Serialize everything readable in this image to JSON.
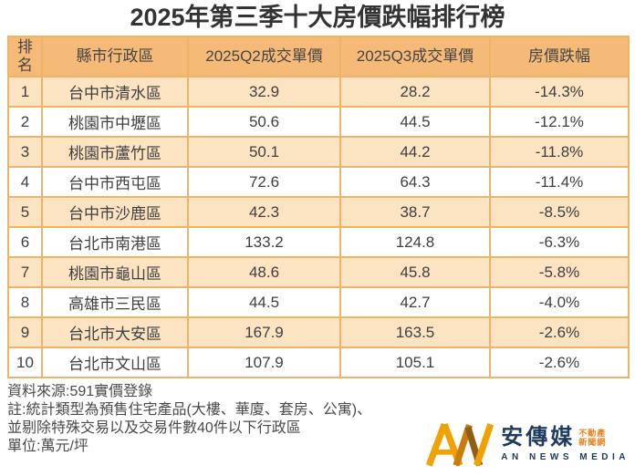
{
  "title": "2025年第三季十大房價跌幅排行榜",
  "chart_data": {
    "type": "table",
    "title": "2025年第三季十大房價跌幅排行榜",
    "columns": [
      "排名",
      "縣市行政區",
      "2025Q2成交單價",
      "2025Q3成交單價",
      "房價跌幅"
    ],
    "rows": [
      [
        "1",
        "台中市清水區",
        "32.9",
        "28.2",
        "-14.3%"
      ],
      [
        "2",
        "桃園市中壢區",
        "50.6",
        "44.5",
        "-12.1%"
      ],
      [
        "3",
        "桃園市蘆竹區",
        "50.1",
        "44.2",
        "-11.8%"
      ],
      [
        "4",
        "台中市西屯區",
        "72.6",
        "64.3",
        "-11.4%"
      ],
      [
        "5",
        "台中市沙鹿區",
        "42.3",
        "38.7",
        "-8.5%"
      ],
      [
        "6",
        "台北市南港區",
        "133.2",
        "124.8",
        "-6.3%"
      ],
      [
        "7",
        "桃園市龜山區",
        "48.6",
        "45.8",
        "-5.8%"
      ],
      [
        "8",
        "高雄市三民區",
        "44.5",
        "42.7",
        "-4.0%"
      ],
      [
        "9",
        "台北市大安區",
        "167.9",
        "163.5",
        "-2.6%"
      ],
      [
        "10",
        "台北市文山區",
        "107.9",
        "105.1",
        "-2.6%"
      ]
    ],
    "unit": "萬元/坪",
    "source": "591實價登錄",
    "layout_hints": {
      "zebra_striping": true,
      "all_cells_centered": true
    }
  },
  "footer": {
    "lines": [
      "資料來源:591實價登錄",
      "註:統計類型為預售住宅產品(大樓、華廈、套房、公寓)、",
      "並剔除特殊交易以及交易件數40件以下行政區",
      "單位:萬元/坪"
    ]
  },
  "logo": {
    "brand": "安傳媒",
    "tagline_top": "不動產",
    "tagline_bottom": "新聞網",
    "subtext": "AN NEWS MEDIA"
  },
  "colors": {
    "header_bg": "#f6ba78",
    "row_alt_bg": "#fce3c2",
    "row_bg": "#ffffff",
    "grid_border": "#ecb467",
    "table_text": "#3f3f3f",
    "title_text": "#333333",
    "footer_text": "#4a4a4a",
    "logo_navy": "#1e3c5f",
    "logo_orange": "#e8821e",
    "logo_gold": "#f0a202",
    "logo_amber": "#c87e0e",
    "logo_brown": "#8f5e12"
  }
}
